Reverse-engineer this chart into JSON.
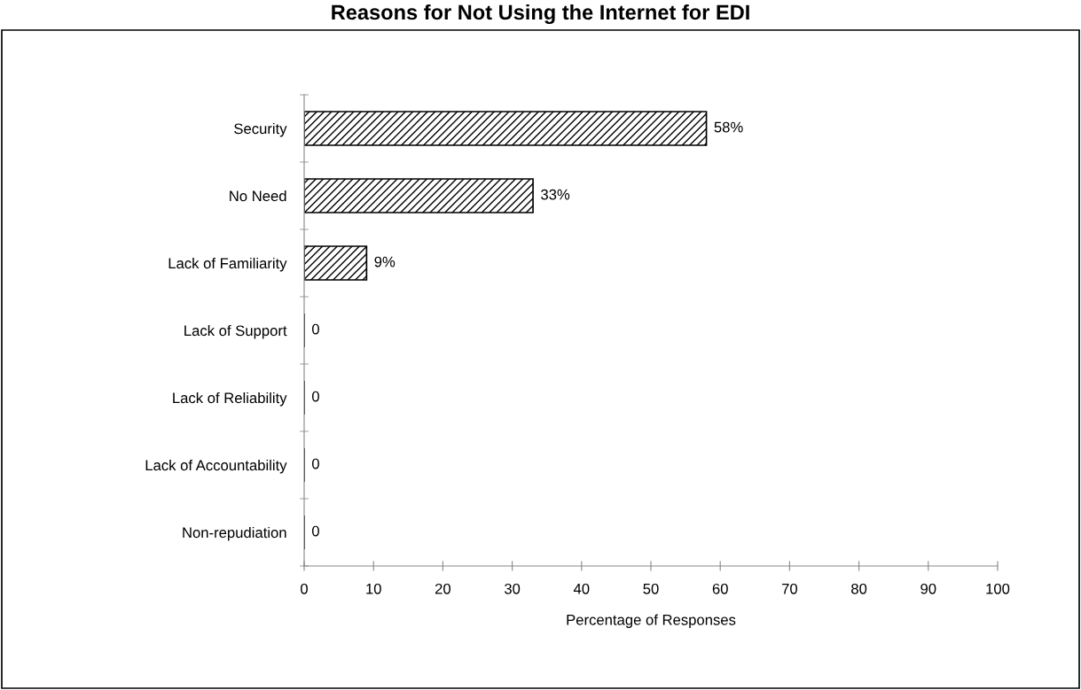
{
  "chart_data": {
    "type": "bar",
    "orientation": "horizontal",
    "title": "Reasons for Not Using the Internet for EDI",
    "xlabel": "Percentage of Responses",
    "categories": [
      "Security",
      "No Need",
      "Lack of Familiarity",
      "Lack of Support",
      "Lack of Reliability",
      "Lack of Accountability",
      "Non-repudiation"
    ],
    "values": [
      58,
      33,
      9,
      0,
      0,
      0,
      0
    ],
    "color": "#000000",
    "value_labels": [
      "58%",
      "33%",
      "9%",
      "0",
      "0",
      "0",
      "0"
    ],
    "xlim": [
      0,
      100
    ],
    "xticks": [
      0,
      10,
      20,
      30,
      40,
      50,
      60,
      70,
      80,
      90,
      100
    ],
    "grid": false,
    "legend": false
  }
}
